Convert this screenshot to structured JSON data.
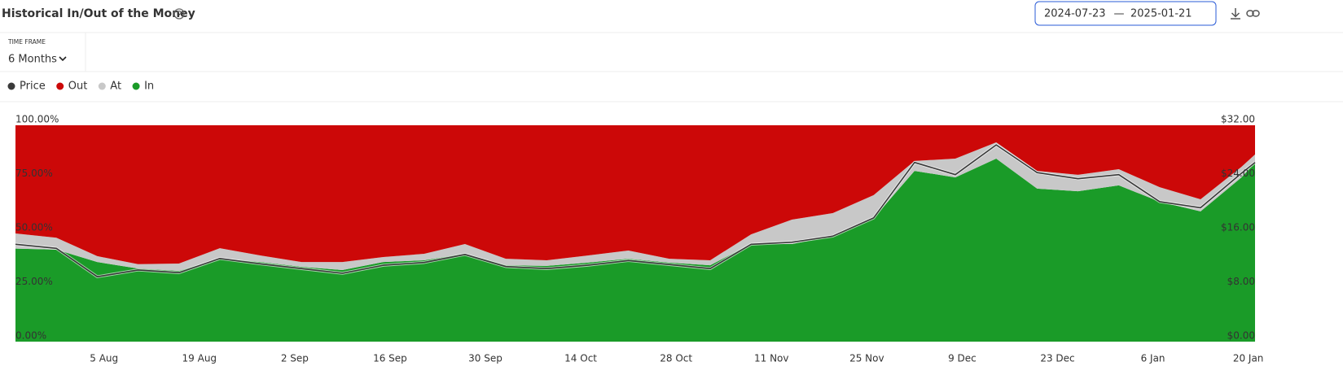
{
  "header": {
    "title": "Historical In/Out of the Money",
    "date_from": "2024-07-23",
    "date_separator": "—",
    "date_to": "2025-01-21"
  },
  "timeframe": {
    "label": "TIME FRAME",
    "value": "6 Months"
  },
  "chart_data": {
    "type": "area",
    "x": [
      "2024-07-23",
      "2024-07-29",
      "2024-08-04",
      "2024-08-10",
      "2024-08-16",
      "2024-08-22",
      "2024-08-28",
      "2024-09-03",
      "2024-09-09",
      "2024-09-15",
      "2024-09-21",
      "2024-09-27",
      "2024-10-03",
      "2024-10-09",
      "2024-10-15",
      "2024-10-21",
      "2024-10-27",
      "2024-11-02",
      "2024-11-08",
      "2024-11-14",
      "2024-11-20",
      "2024-11-26",
      "2024-12-02",
      "2024-12-08",
      "2024-12-14",
      "2024-12-20",
      "2024-12-26",
      "2025-01-01",
      "2025-01-07",
      "2025-01-13",
      "2025-01-19",
      "2025-01-21"
    ],
    "xlim": [
      "2024-07-23",
      "2025-01-21"
    ],
    "xticks": [
      {
        "value": "2024-08-05",
        "label": "5 Aug"
      },
      {
        "value": "2024-08-19",
        "label": "19 Aug"
      },
      {
        "value": "2024-09-02",
        "label": "2 Sep"
      },
      {
        "value": "2024-09-16",
        "label": "16 Sep"
      },
      {
        "value": "2024-09-30",
        "label": "30 Sep"
      },
      {
        "value": "2024-10-14",
        "label": "14 Oct"
      },
      {
        "value": "2024-10-28",
        "label": "28 Oct"
      },
      {
        "value": "2024-11-11",
        "label": "11 Nov"
      },
      {
        "value": "2024-11-25",
        "label": "25 Nov"
      },
      {
        "value": "2024-12-09",
        "label": "9 Dec"
      },
      {
        "value": "2024-12-23",
        "label": "23 Dec"
      },
      {
        "value": "2025-01-06",
        "label": "6 Jan"
      },
      {
        "value": "2025-01-20",
        "label": "20 Jan"
      }
    ],
    "ylim": [
      0,
      100
    ],
    "yticks": [
      {
        "value": 0,
        "label": "0.00%"
      },
      {
        "value": 25,
        "label": "25.00%"
      },
      {
        "value": 50,
        "label": "50.00%"
      },
      {
        "value": 75,
        "label": "75.00%"
      },
      {
        "value": 100,
        "label": "100.00%"
      }
    ],
    "y2lim": [
      0,
      32
    ],
    "y2ticks": [
      {
        "value": 0,
        "label": "$0.00"
      },
      {
        "value": 8,
        "label": "$8.00"
      },
      {
        "value": 16,
        "label": "$16.00"
      },
      {
        "value": 24,
        "label": "$24.00"
      },
      {
        "value": 32,
        "label": "$32.00"
      }
    ],
    "series": [
      {
        "name": "Price",
        "type": "line",
        "axis": "y2",
        "color": "#3a3a3a",
        "values": [
          14.4,
          13.8,
          9.6,
          10.6,
          10.2,
          12.3,
          11.5,
          10.8,
          10.1,
          11.3,
          11.7,
          12.9,
          11.1,
          10.8,
          11.3,
          12.0,
          11.4,
          10.8,
          14.4,
          14.7,
          15.6,
          18.3,
          26.5,
          24.7,
          29.1,
          25.0,
          24.1,
          24.7,
          20.7,
          19.8,
          24.9,
          26.5
        ]
      },
      {
        "name": "Out",
        "type": "area",
        "color": "#cc0808",
        "values": [
          50,
          52,
          60.5,
          64.2,
          63.9,
          56.8,
          60.2,
          63.2,
          63.2,
          60.9,
          59.4,
          54.9,
          61.7,
          62.4,
          60.2,
          57.9,
          61.7,
          62.4,
          50.4,
          43.6,
          40.6,
          32.3,
          16.5,
          15.4,
          7.9,
          21.1,
          22.9,
          20.3,
          28.6,
          34.2,
          19.2,
          13.5
        ]
      },
      {
        "name": "At",
        "type": "area",
        "color": "#c8c8c8",
        "values": [
          7,
          5.5,
          2.7,
          2,
          3.4,
          4.9,
          3,
          2.2,
          3.7,
          2.3,
          3,
          4.5,
          3,
          2.6,
          3.3,
          3.8,
          1.8,
          2.3,
          4.5,
          11.3,
          10.5,
          10.6,
          4.6,
          8.7,
          7.5,
          8.2,
          7.6,
          7.5,
          6.7,
          5.6,
          4.9,
          3.8
        ]
      },
      {
        "name": "In",
        "type": "area",
        "color": "#1a9b28",
        "values": [
          43,
          42.5,
          36.8,
          33.8,
          32.7,
          38.3,
          36.8,
          34.6,
          33.1,
          36.8,
          37.6,
          40.6,
          35.3,
          35,
          36.5,
          38.3,
          36.5,
          35.3,
          45.1,
          45.1,
          48.9,
          57.1,
          78.9,
          75.9,
          84.6,
          70.7,
          69.5,
          72.2,
          64.7,
          60.2,
          75.9,
          82.7
        ]
      }
    ]
  }
}
